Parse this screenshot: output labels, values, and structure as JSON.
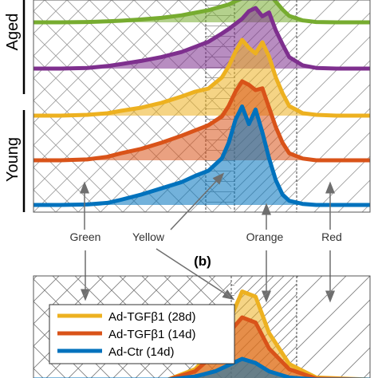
{
  "panel_b_label": "(b)",
  "group_labels": [
    "Aged",
    "Young"
  ],
  "band_labels": [
    "Green",
    "Yellow",
    "Orange",
    "Red"
  ],
  "colors": {
    "Ad-TGFβ1 (28d)": "#edb120",
    "Ad-TGFβ1 (14d)": "#d95319",
    "Ad-Ctr (14d)": "#0072bd",
    "aged_green": "#77ac30",
    "aged_purple": "#7e2f8e",
    "hatch": "#7a7a7a",
    "arrow": "#6e6e6e"
  },
  "chart_data": [
    {
      "type": "area",
      "panel": "a",
      "group_labels": [
        "Aged",
        "Young"
      ],
      "band_labels": [
        "Green",
        "Yellow",
        "Orange",
        "Red"
      ],
      "series": [
        {
          "color": "#77ac30",
          "group": "Aged",
          "x": [
            0,
            8,
            16,
            22,
            26,
            32,
            38,
            44,
            48,
            52,
            56,
            58,
            60,
            62,
            64,
            66,
            68,
            70,
            72,
            74,
            76,
            80,
            84,
            90,
            100
          ],
          "y": [
            0,
            0,
            0.01,
            0.03,
            0.05,
            0.09,
            0.14,
            0.22,
            0.3,
            0.38,
            0.5,
            0.56,
            0.66,
            0.75,
            0.86,
            0.92,
            0.8,
            0.9,
            0.65,
            0.4,
            0.2,
            0.06,
            0.01,
            0,
            0
          ]
        },
        {
          "color": "#7e2f8e",
          "group": "Aged",
          "x": [
            0,
            8,
            16,
            22,
            26,
            32,
            38,
            44,
            48,
            52,
            56,
            58,
            60,
            62,
            64,
            66,
            68,
            70,
            72,
            74,
            76,
            80,
            84,
            90,
            100
          ],
          "y": [
            0,
            0,
            0.01,
            0.04,
            0.07,
            0.12,
            0.18,
            0.26,
            0.34,
            0.42,
            0.55,
            0.62,
            0.7,
            0.78,
            0.9,
            0.95,
            0.82,
            0.88,
            0.6,
            0.38,
            0.18,
            0.05,
            0.01,
            0,
            0
          ]
        },
        {
          "name": "Ad-TGFβ1 (28d)",
          "color": "#edb120",
          "group": "Young",
          "x": [
            0,
            8,
            16,
            22,
            26,
            32,
            38,
            44,
            48,
            52,
            56,
            58,
            60,
            62,
            64,
            66,
            68,
            70,
            72,
            74,
            76,
            80,
            84,
            90,
            100
          ],
          "y": [
            0,
            0,
            0.01,
            0.03,
            0.06,
            0.1,
            0.16,
            0.24,
            0.3,
            0.34,
            0.48,
            0.62,
            0.8,
            0.95,
            0.85,
            0.78,
            0.92,
            0.74,
            0.48,
            0.28,
            0.12,
            0.03,
            0.01,
            0,
            0
          ]
        },
        {
          "name": "Ad-TGFβ1 (14d)",
          "color": "#d95319",
          "group": "Young",
          "x": [
            0,
            8,
            16,
            22,
            26,
            32,
            38,
            44,
            48,
            52,
            56,
            58,
            60,
            62,
            64,
            66,
            68,
            70,
            72,
            74,
            76,
            80,
            84,
            90,
            100
          ],
          "y": [
            0,
            0,
            0.01,
            0.04,
            0.08,
            0.13,
            0.2,
            0.28,
            0.34,
            0.4,
            0.5,
            0.62,
            0.78,
            0.9,
            0.86,
            0.8,
            0.82,
            0.6,
            0.38,
            0.2,
            0.08,
            0.02,
            0,
            0,
            0
          ]
        },
        {
          "name": "Ad-Ctr (14d)",
          "color": "#0072bd",
          "group": "Young",
          "x": [
            0,
            8,
            16,
            22,
            26,
            32,
            38,
            44,
            48,
            52,
            56,
            58,
            60,
            62,
            64,
            66,
            68,
            70,
            72,
            74,
            76,
            80,
            84,
            90,
            100
          ],
          "y": [
            0,
            0,
            0.005,
            0.02,
            0.05,
            0.1,
            0.16,
            0.22,
            0.28,
            0.33,
            0.45,
            0.6,
            0.82,
            0.95,
            0.78,
            0.92,
            0.7,
            0.45,
            0.24,
            0.1,
            0.04,
            0.01,
            0,
            0,
            0
          ]
        }
      ]
    },
    {
      "type": "area",
      "panel": "b",
      "title": "(b)",
      "legend": [
        "Ad-TGFβ1 (28d)",
        "Ad-TGFβ1 (14d)",
        "Ad-Ctr (14d)"
      ],
      "series": [
        {
          "name": "Ad-TGFβ1 (28d)",
          "color": "#edb120",
          "x": [
            0,
            40,
            48,
            54,
            58,
            62,
            66,
            70,
            76,
            84,
            100
          ],
          "y": [
            0,
            0,
            0.1,
            0.3,
            0.55,
            0.85,
            0.8,
            0.45,
            0.15,
            0.02,
            0
          ]
        },
        {
          "name": "Ad-TGFβ1 (14d)",
          "color": "#d95319",
          "x": [
            0,
            40,
            48,
            54,
            58,
            62,
            66,
            70,
            76,
            84,
            100
          ],
          "y": [
            0,
            0,
            0.08,
            0.25,
            0.45,
            0.6,
            0.55,
            0.3,
            0.1,
            0.01,
            0
          ]
        },
        {
          "name": "Ad-Ctr (14d)",
          "color": "#0072bd",
          "x": [
            0,
            40,
            48,
            54,
            58,
            62,
            66,
            70,
            76,
            84,
            100
          ],
          "y": [
            0,
            0,
            0.03,
            0.08,
            0.14,
            0.2,
            0.16,
            0.08,
            0.02,
            0,
            0
          ]
        }
      ]
    }
  ]
}
